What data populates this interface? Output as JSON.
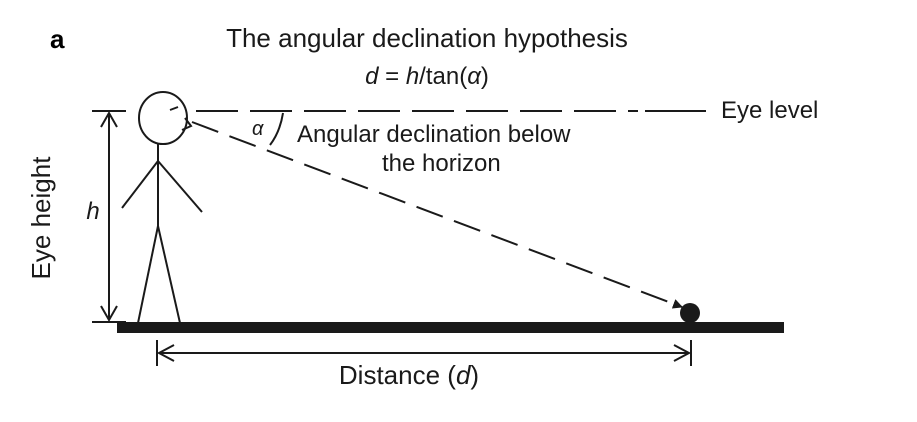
{
  "panel_label": "a",
  "title": "The angular declination hypothesis",
  "formula": {
    "lhs": "d",
    "eq": " = ",
    "h": "h",
    "mid": "/tan(",
    "alpha": "α",
    "close": ")"
  },
  "labels": {
    "eye_level": "Eye level",
    "alpha_symbol": "α",
    "angle_desc_line1": "Angular declination below",
    "angle_desc_line2": "the horizon",
    "eye_height": "Eye height",
    "h_symbol": "h",
    "distance": "Distance (",
    "distance_var": "d",
    "distance_close": ")"
  },
  "colors": {
    "ink": "#1a1a1a",
    "ground": "#1a1a1a",
    "background": "#ffffff"
  }
}
